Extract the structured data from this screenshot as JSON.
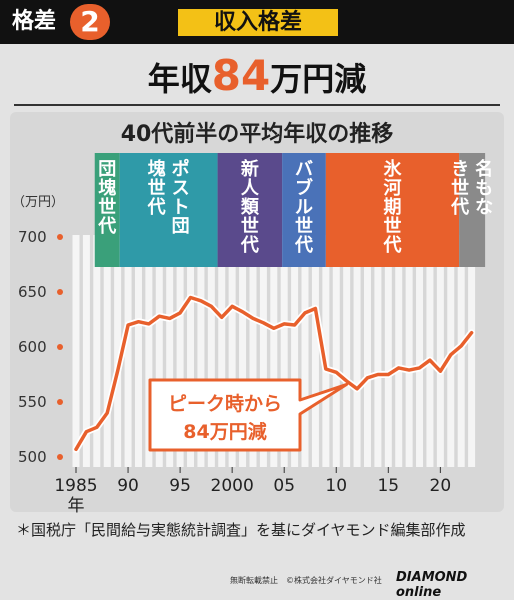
{
  "header": {
    "section_label": "格差",
    "section_number": "2",
    "main_title": "収入格差"
  },
  "headline": {
    "prefix": "年収",
    "number": "84",
    "suffix": "万円減"
  },
  "colors": {
    "accent": "#e8602c",
    "line": "#e8602c",
    "title_box": "#f3c116",
    "dankai": "#3aa07a",
    "post_dankai": "#2f9aa8",
    "shinjinrui": "#5a4a8c",
    "bubble": "#4a72b8",
    "hyoga": "#e8602c",
    "nanashi": "#8a8a8a"
  },
  "chart_data": {
    "type": "line",
    "title": "40代前半の平均年収の推移",
    "ylabel": "（万円）",
    "ylim": [
      500,
      700
    ],
    "yticks": [
      500,
      550,
      600,
      650,
      700
    ],
    "xlim": [
      1985,
      2024
    ],
    "xtick_values": [
      1985,
      1990,
      1995,
      2000,
      2005,
      2010,
      2015,
      2020
    ],
    "xtick_labels": [
      "1985",
      "90",
      "95",
      "2000",
      "05",
      "10",
      "15",
      "20"
    ],
    "x_unit": "年",
    "x": [
      1985,
      1986,
      1987,
      1988,
      1989,
      1990,
      1991,
      1992,
      1993,
      1994,
      1995,
      1996,
      1997,
      1998,
      1999,
      2000,
      2001,
      2002,
      2003,
      2004,
      2005,
      2006,
      2007,
      2008,
      2009,
      2010,
      2011,
      2012,
      2013,
      2014,
      2015,
      2016,
      2017,
      2018,
      2019,
      2020,
      2021,
      2022,
      2023
    ],
    "series": [
      {
        "values": [
          507,
          523,
          527,
          540,
          578,
          620,
          623,
          621,
          628,
          626,
          631,
          645,
          642,
          637,
          627,
          637,
          632,
          626,
          622,
          617,
          621,
          620,
          631,
          635,
          580,
          577,
          569,
          562,
          572,
          575,
          575,
          581,
          579,
          581,
          588,
          578,
          593,
          601,
          613
        ]
      }
    ],
    "generations": [
      {
        "label": "団塊世代",
        "start": 1986.8,
        "end": 1989.2,
        "color": "#3aa07a"
      },
      {
        "label": "ポスト団塊世代",
        "start": 1989.2,
        "end": 1998.6,
        "color": "#2f9aa8"
      },
      {
        "label": "新人類世代",
        "start": 1998.6,
        "end": 2004.8,
        "color": "#5a4a8c"
      },
      {
        "label": "バブル世代",
        "start": 2004.8,
        "end": 2009.0,
        "color": "#4a72b8"
      },
      {
        "label": "氷河期世代",
        "start": 2009.0,
        "end": 2021.8,
        "color": "#e8602c"
      },
      {
        "label": "名もなき世代",
        "start": 2021.8,
        "end": 2024.3,
        "color": "#8a8a8a"
      }
    ],
    "annotation": {
      "line1": "ピーク時から",
      "line2": "84万円減"
    }
  },
  "footnote": "＊国税庁「民間給与実態統計調査」を基にダイヤモンド編集部作成",
  "credit": "無断転載禁止　©株式会社ダイヤモンド社",
  "brand": "DIAMOND online"
}
